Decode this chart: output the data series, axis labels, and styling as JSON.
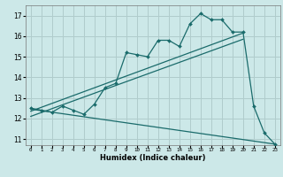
{
  "title": "",
  "xlabel": "Humidex (Indice chaleur)",
  "bg_color": "#cce8e8",
  "grid_color": "#b0cccc",
  "line_color": "#1a6b6b",
  "xlim": [
    -0.5,
    23.5
  ],
  "ylim": [
    10.7,
    17.5
  ],
  "xticks": [
    0,
    1,
    2,
    3,
    4,
    5,
    6,
    7,
    8,
    9,
    10,
    11,
    12,
    13,
    14,
    15,
    16,
    17,
    18,
    19,
    20,
    21,
    22,
    23
  ],
  "yticks": [
    11,
    12,
    13,
    14,
    15,
    16,
    17
  ],
  "main_x": [
    0,
    1,
    2,
    3,
    4,
    5,
    6,
    7,
    8,
    9,
    10,
    11,
    12,
    13,
    14,
    15,
    16,
    17,
    18,
    19,
    20,
    21,
    22,
    23
  ],
  "main_y": [
    12.5,
    12.4,
    12.3,
    12.6,
    12.4,
    12.2,
    12.7,
    13.5,
    13.7,
    15.2,
    15.1,
    15.0,
    15.8,
    15.8,
    15.5,
    16.6,
    17.1,
    16.8,
    16.8,
    16.2,
    16.2,
    12.6,
    11.3,
    10.75
  ],
  "line1_x": [
    0,
    20
  ],
  "line1_y": [
    12.35,
    16.15
  ],
  "line2_x": [
    0,
    23
  ],
  "line2_y": [
    12.45,
    10.75
  ],
  "line3_x": [
    0,
    20
  ],
  "line3_y": [
    12.1,
    15.85
  ]
}
